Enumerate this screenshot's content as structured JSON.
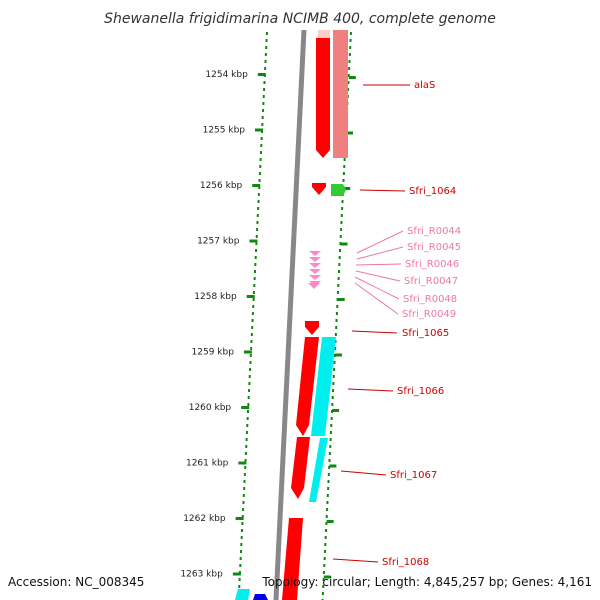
{
  "title": "Shewanella frigidimarina NCIMB 400, complete genome",
  "footer": {
    "accession": "Accession: NC_008345",
    "topology": "Topology: circular; Length: 4,845,257 bp; Genes: 4,161"
  },
  "colors": {
    "cds": "#ff0000",
    "cds_light": "#f08080",
    "rrna": "#ff88c8",
    "green_feature": "#33cc33",
    "cyan_feature": "#00eeee",
    "blue_feature": "#0000ee",
    "backbone": "#888888",
    "tick": "#118811",
    "label_dark": "#cc0000",
    "label_pink": "#ee77aa"
  },
  "ruler": {
    "labels": [
      "1254 kbp",
      "1255 kbp",
      "1256 kbp",
      "1257 kbp",
      "1258 kbp",
      "1259 kbp",
      "1260 kbp",
      "1261 kbp",
      "1262 kbp",
      "1263 kbp"
    ]
  },
  "genes": [
    {
      "name": "alaS",
      "color": "dark"
    },
    {
      "name": "Sfri_1064",
      "color": "dark"
    },
    {
      "name": "Sfri_R0044",
      "color": "pink"
    },
    {
      "name": "Sfri_R0045",
      "color": "pink"
    },
    {
      "name": "Sfri_R0046",
      "color": "pink"
    },
    {
      "name": "Sfri_R0047",
      "color": "pink"
    },
    {
      "name": "Sfri_R0048",
      "color": "pink"
    },
    {
      "name": "Sfri_R0049",
      "color": "pink"
    },
    {
      "name": "Sfri_1065",
      "color": "dark"
    },
    {
      "name": "Sfri_1066",
      "color": "dark"
    },
    {
      "name": "Sfri_1067",
      "color": "dark"
    },
    {
      "name": "Sfri_1068",
      "color": "dark"
    }
  ]
}
